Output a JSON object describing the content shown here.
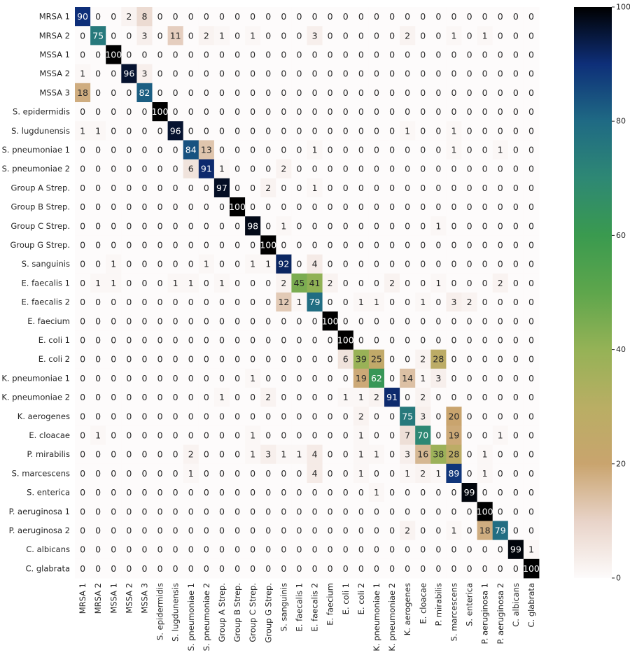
{
  "chart_data": {
    "type": "heatmap",
    "title": "",
    "xlabel": "",
    "ylabel": "",
    "colormap": "gist_earth_r",
    "vmin": 0,
    "vmax": 100,
    "colorbar_ticks": [
      "0",
      "20",
      "40",
      "60",
      "80",
      "100"
    ],
    "labels": [
      "MRSA 1",
      "MRSA 2",
      "MSSA 1",
      "MSSA 2",
      "MSSA 3",
      "S. epidermidis",
      "S. lugdunensis",
      "S. pneumoniae 1",
      "S. pneumoniae 2",
      "Group A Strep.",
      "Group B Strep.",
      "Group C Strep.",
      "Group G Strep.",
      "S. sanguinis",
      "E. faecalis 1",
      "E. faecalis 2",
      "E. faecium",
      "E. coli 1",
      "E. coli 2",
      "K. pneumoniae 1",
      "K. pneumoniae 2",
      "K. aerogenes",
      "E. cloacae",
      "P. mirabilis",
      "S. marcescens",
      "S. enterica",
      "P. aeruginosa 1",
      "P. aeruginosa 2",
      "C. albicans",
      "C. glabrata"
    ],
    "values": [
      [
        90,
        0,
        0,
        2,
        8,
        0,
        0,
        0,
        0,
        0,
        0,
        0,
        0,
        0,
        0,
        0,
        0,
        0,
        0,
        0,
        0,
        0,
        0,
        0,
        0,
        0,
        0,
        0,
        0,
        0
      ],
      [
        0,
        75,
        0,
        0,
        3,
        0,
        11,
        0,
        2,
        1,
        0,
        1,
        0,
        0,
        0,
        3,
        0,
        0,
        0,
        0,
        0,
        2,
        0,
        0,
        1,
        0,
        1,
        0,
        0,
        0
      ],
      [
        0,
        0,
        100,
        0,
        0,
        0,
        0,
        0,
        0,
        0,
        0,
        0,
        0,
        0,
        0,
        0,
        0,
        0,
        0,
        0,
        0,
        0,
        0,
        0,
        0,
        0,
        0,
        0,
        0,
        0
      ],
      [
        1,
        0,
        0,
        96,
        3,
        0,
        0,
        0,
        0,
        0,
        0,
        0,
        0,
        0,
        0,
        0,
        0,
        0,
        0,
        0,
        0,
        0,
        0,
        0,
        0,
        0,
        0,
        0,
        0,
        0
      ],
      [
        18,
        0,
        0,
        0,
        82,
        0,
        0,
        0,
        0,
        0,
        0,
        0,
        0,
        0,
        0,
        0,
        0,
        0,
        0,
        0,
        0,
        0,
        0,
        0,
        0,
        0,
        0,
        0,
        0,
        0
      ],
      [
        0,
        0,
        0,
        0,
        0,
        100,
        0,
        0,
        0,
        0,
        0,
        0,
        0,
        0,
        0,
        0,
        0,
        0,
        0,
        0,
        0,
        0,
        0,
        0,
        0,
        0,
        0,
        0,
        0,
        0
      ],
      [
        1,
        1,
        0,
        0,
        0,
        0,
        96,
        0,
        0,
        0,
        0,
        0,
        0,
        0,
        0,
        0,
        0,
        0,
        0,
        0,
        0,
        1,
        0,
        0,
        1,
        0,
        0,
        0,
        0,
        0
      ],
      [
        0,
        0,
        0,
        0,
        0,
        0,
        0,
        84,
        13,
        0,
        0,
        0,
        0,
        0,
        0,
        1,
        0,
        0,
        0,
        0,
        0,
        0,
        0,
        0,
        1,
        0,
        0,
        1,
        0,
        0
      ],
      [
        0,
        0,
        0,
        0,
        0,
        0,
        0,
        6,
        91,
        1,
        0,
        0,
        0,
        2,
        0,
        0,
        0,
        0,
        0,
        0,
        0,
        0,
        0,
        0,
        0,
        0,
        0,
        0,
        0,
        0
      ],
      [
        0,
        0,
        0,
        0,
        0,
        0,
        0,
        0,
        0,
        97,
        0,
        0,
        2,
        0,
        0,
        1,
        0,
        0,
        0,
        0,
        0,
        0,
        0,
        0,
        0,
        0,
        0,
        0,
        0,
        0
      ],
      [
        0,
        0,
        0,
        0,
        0,
        0,
        0,
        0,
        0,
        0,
        100,
        0,
        0,
        0,
        0,
        0,
        0,
        0,
        0,
        0,
        0,
        0,
        0,
        0,
        0,
        0,
        0,
        0,
        0,
        0
      ],
      [
        0,
        0,
        0,
        0,
        0,
        0,
        0,
        0,
        0,
        0,
        0,
        98,
        0,
        1,
        0,
        0,
        0,
        0,
        0,
        0,
        0,
        0,
        0,
        1,
        0,
        0,
        0,
        0,
        0,
        0
      ],
      [
        0,
        0,
        0,
        0,
        0,
        0,
        0,
        0,
        0,
        0,
        0,
        0,
        100,
        0,
        0,
        0,
        0,
        0,
        0,
        0,
        0,
        0,
        0,
        0,
        0,
        0,
        0,
        0,
        0,
        0
      ],
      [
        0,
        0,
        1,
        0,
        0,
        0,
        0,
        0,
        1,
        0,
        0,
        1,
        1,
        92,
        0,
        4,
        0,
        0,
        0,
        0,
        0,
        0,
        0,
        0,
        0,
        0,
        0,
        0,
        0,
        0
      ],
      [
        0,
        1,
        1,
        0,
        0,
        0,
        1,
        1,
        0,
        1,
        0,
        0,
        0,
        2,
        45,
        41,
        2,
        0,
        0,
        0,
        2,
        0,
        0,
        1,
        0,
        0,
        0,
        2,
        0,
        0
      ],
      [
        0,
        0,
        0,
        0,
        0,
        0,
        0,
        0,
        0,
        0,
        0,
        0,
        0,
        12,
        1,
        79,
        0,
        0,
        1,
        1,
        0,
        0,
        1,
        0,
        3,
        2,
        0,
        0,
        0,
        0
      ],
      [
        0,
        0,
        0,
        0,
        0,
        0,
        0,
        0,
        0,
        0,
        0,
        0,
        0,
        0,
        0,
        0,
        100,
        0,
        0,
        0,
        0,
        0,
        0,
        0,
        0,
        0,
        0,
        0,
        0,
        0
      ],
      [
        0,
        0,
        0,
        0,
        0,
        0,
        0,
        0,
        0,
        0,
        0,
        0,
        0,
        0,
        0,
        0,
        0,
        100,
        0,
        0,
        0,
        0,
        0,
        0,
        0,
        0,
        0,
        0,
        0,
        0
      ],
      [
        0,
        0,
        0,
        0,
        0,
        0,
        0,
        0,
        0,
        0,
        0,
        0,
        0,
        0,
        0,
        0,
        0,
        6,
        39,
        25,
        0,
        0,
        2,
        28,
        0,
        0,
        0,
        0,
        0,
        0
      ],
      [
        0,
        0,
        0,
        0,
        0,
        0,
        0,
        0,
        0,
        0,
        0,
        1,
        0,
        0,
        0,
        0,
        0,
        0,
        19,
        62,
        0,
        14,
        1,
        3,
        0,
        0,
        0,
        0,
        0,
        0
      ],
      [
        0,
        0,
        0,
        0,
        0,
        0,
        0,
        0,
        0,
        1,
        0,
        0,
        2,
        0,
        0,
        0,
        0,
        1,
        1,
        2,
        91,
        0,
        2,
        0,
        0,
        0,
        0,
        0,
        0,
        0
      ],
      [
        0,
        0,
        0,
        0,
        0,
        0,
        0,
        0,
        0,
        0,
        0,
        0,
        0,
        0,
        0,
        0,
        0,
        0,
        2,
        0,
        0,
        75,
        3,
        0,
        20,
        0,
        0,
        0,
        0,
        0
      ],
      [
        0,
        1,
        0,
        0,
        0,
        0,
        0,
        0,
        0,
        0,
        0,
        1,
        0,
        0,
        0,
        0,
        0,
        0,
        1,
        0,
        0,
        7,
        70,
        0,
        19,
        0,
        0,
        1,
        0,
        0
      ],
      [
        0,
        0,
        0,
        0,
        0,
        0,
        0,
        2,
        0,
        0,
        0,
        1,
        3,
        1,
        1,
        4,
        0,
        0,
        1,
        1,
        0,
        3,
        16,
        38,
        28,
        0,
        1,
        0,
        0,
        0
      ],
      [
        0,
        0,
        0,
        0,
        0,
        0,
        0,
        1,
        0,
        0,
        0,
        0,
        0,
        0,
        0,
        4,
        0,
        0,
        1,
        0,
        0,
        1,
        2,
        1,
        89,
        0,
        1,
        0,
        0,
        0
      ],
      [
        0,
        0,
        0,
        0,
        0,
        0,
        0,
        0,
        0,
        0,
        0,
        0,
        0,
        0,
        0,
        0,
        0,
        0,
        0,
        1,
        0,
        0,
        0,
        0,
        0,
        99,
        0,
        0,
        0,
        0
      ],
      [
        0,
        0,
        0,
        0,
        0,
        0,
        0,
        0,
        0,
        0,
        0,
        0,
        0,
        0,
        0,
        0,
        0,
        0,
        0,
        0,
        0,
        0,
        0,
        0,
        0,
        0,
        100,
        0,
        0,
        0
      ],
      [
        0,
        0,
        0,
        0,
        0,
        0,
        0,
        0,
        0,
        0,
        0,
        0,
        0,
        0,
        0,
        0,
        0,
        0,
        0,
        0,
        0,
        2,
        0,
        0,
        1,
        0,
        18,
        79,
        0,
        0
      ],
      [
        0,
        0,
        0,
        0,
        0,
        0,
        0,
        0,
        0,
        0,
        0,
        0,
        0,
        0,
        0,
        0,
        0,
        0,
        0,
        0,
        0,
        0,
        0,
        0,
        0,
        0,
        0,
        0,
        99,
        1
      ],
      [
        0,
        0,
        0,
        0,
        0,
        0,
        0,
        0,
        0,
        0,
        0,
        0,
        0,
        0,
        0,
        0,
        0,
        0,
        0,
        0,
        0,
        0,
        0,
        0,
        0,
        0,
        0,
        0,
        0,
        100
      ]
    ],
    "grid": false,
    "legend": "colorbar-right"
  }
}
